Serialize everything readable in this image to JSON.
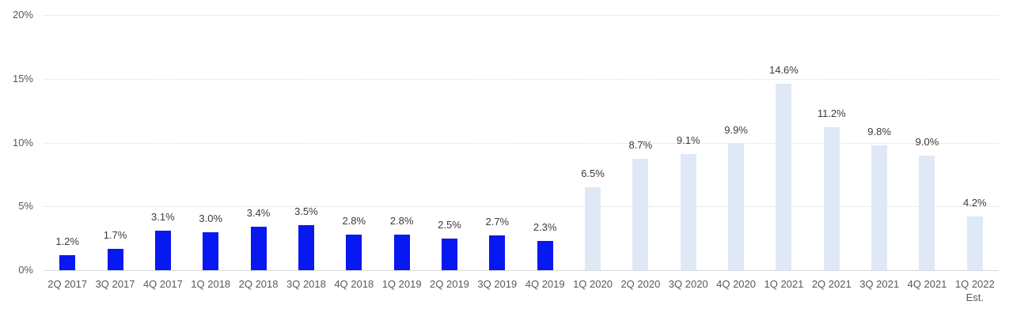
{
  "chart_data": {
    "type": "bar",
    "title": "",
    "xlabel": "",
    "ylabel": "",
    "categories": [
      "2Q 2017",
      "3Q 2017",
      "4Q 2017",
      "1Q 2018",
      "2Q 2018",
      "3Q 2018",
      "4Q 2018",
      "1Q 2019",
      "2Q 2019",
      "3Q 2019",
      "4Q 2019",
      "1Q 2020",
      "2Q 2020",
      "3Q 2020",
      "4Q 2020",
      "1Q 2021",
      "2Q 2021",
      "3Q 2021",
      "4Q 2021",
      "1Q 2022"
    ],
    "values": [
      1.2,
      1.7,
      3.1,
      3.0,
      3.4,
      3.5,
      2.8,
      2.8,
      2.5,
      2.7,
      2.3,
      6.5,
      8.7,
      9.1,
      9.9,
      14.6,
      11.2,
      9.8,
      9.0,
      4.2
    ],
    "data_labels": [
      "1.2%",
      "1.7%",
      "3.1%",
      "3.0%",
      "3.4%",
      "3.5%",
      "2.8%",
      "2.8%",
      "2.5%",
      "2.7%",
      "2.3%",
      "6.5%",
      "8.7%",
      "9.1%",
      "9.9%",
      "14.6%",
      "11.2%",
      "9.8%",
      "9.0%",
      "4.2%"
    ],
    "category_note": {
      "index": 19,
      "text": "Est."
    },
    "groups": [
      {
        "name": "solid-blue-actuals",
        "color": "#0718f0",
        "start": 0,
        "end": 10
      },
      {
        "name": "light-blue-recent",
        "color": "#dee9f5",
        "start": 11,
        "end": 19
      }
    ],
    "y_axis": {
      "ticks": [
        "0%",
        "5%",
        "10%",
        "15%",
        "20%"
      ],
      "tick_values": [
        0,
        5,
        10,
        15,
        20
      ],
      "ylim": [
        0,
        20
      ]
    },
    "grid": "horizontal dotted",
    "legend": "none",
    "colors": {
      "background": "#ffffff",
      "gridline": "#d9d9d9",
      "axis_line": "#d9d9d9",
      "data_label_text": "#3b3b3b",
      "axis_label_text": "#595959"
    }
  }
}
